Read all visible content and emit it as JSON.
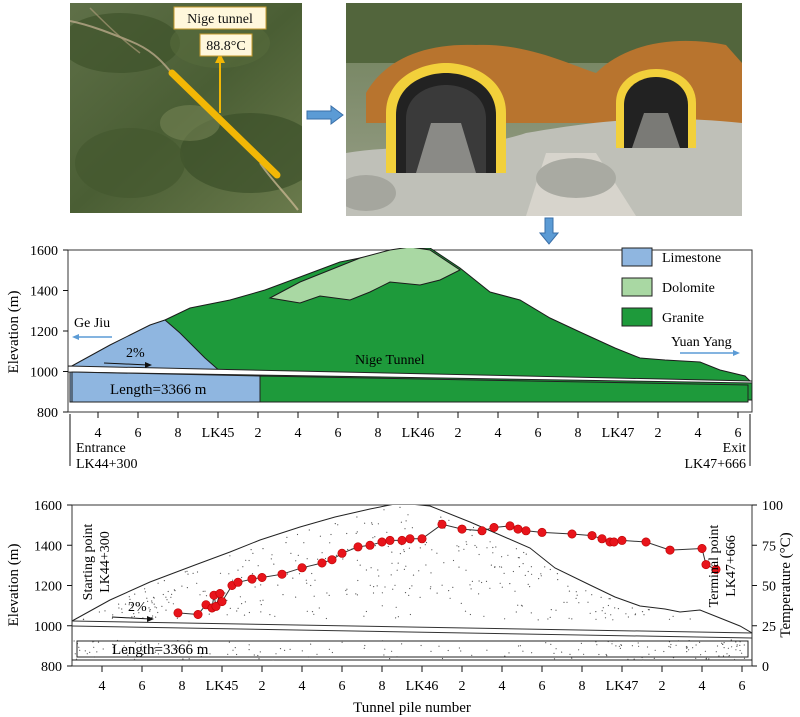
{
  "map_photo": {
    "callout_title": "Nige tunnel",
    "callout_temp": "88.8°C"
  },
  "geo_section": {
    "ylabel": "Elevation (m)",
    "yticks": [
      "1600",
      "1400",
      "1200",
      "1000",
      "800"
    ],
    "legend": [
      "Limestone",
      "Dolomite",
      "Granite"
    ],
    "left_direction": "Ge Jiu",
    "right_direction": "Yuan Yang",
    "slope": "2%",
    "tunnel_name": "Nige Tunnel",
    "length": "Length=3366 m",
    "xticks": [
      "4",
      "6",
      "8",
      "LK45",
      "2",
      "4",
      "6",
      "8",
      "LK46",
      "2",
      "4",
      "6",
      "8",
      "LK47",
      "2",
      "4",
      "6"
    ],
    "entrance_label": "Entrance",
    "entrance_pile": "LK44+300",
    "exit_label": "Exit",
    "exit_pile": "LK47+666"
  },
  "chart_data": {
    "type": "scatter",
    "xlabel": "Tunnel pile number",
    "ylabel": "Elevation (m)",
    "y2label": "Temperature (°C)",
    "ylim": [
      800,
      1600
    ],
    "y2lim": [
      0,
      100
    ],
    "yticks": [
      "1600",
      "1400",
      "1200",
      "1000",
      "800"
    ],
    "y2ticks": [
      "100",
      "75",
      "50",
      "25",
      "0"
    ],
    "xticks": [
      "4",
      "6",
      "8",
      "LK45",
      "2",
      "4",
      "6",
      "8",
      "LK46",
      "2",
      "4",
      "6",
      "8",
      "LK47",
      "2",
      "4",
      "6"
    ],
    "start_label": "Starting point",
    "start_pile": "LK44+300",
    "end_label": "Terminal point",
    "end_pile": "LK47+666",
    "slope": "2%",
    "length": "Length=3366 m",
    "series": [
      {
        "marker_color": "#e8141b",
        "x": [
          44780,
          44880,
          44920,
          44950,
          44960,
          44970,
          44990,
          45000,
          45050,
          45080,
          45150,
          45200,
          45300,
          45400,
          45500,
          45550,
          45600,
          45680,
          45740,
          45800,
          45840,
          45900,
          45940,
          46000,
          46100,
          46200,
          46300,
          46360,
          46440,
          46480,
          46520,
          46600,
          46750,
          46850,
          46900,
          46940,
          46960,
          47000,
          47120,
          47240,
          47400,
          47420,
          47470
        ],
        "y": [
          33,
          32,
          38,
          36,
          44,
          37,
          45,
          40,
          50,
          52,
          54,
          55,
          57,
          61,
          64,
          66,
          70,
          74,
          75,
          77,
          78,
          78,
          79,
          79,
          88,
          85,
          84,
          86,
          87,
          85,
          84,
          83,
          82,
          81,
          79,
          77,
          77,
          78,
          77,
          72,
          73,
          63,
          60
        ]
      }
    ]
  }
}
